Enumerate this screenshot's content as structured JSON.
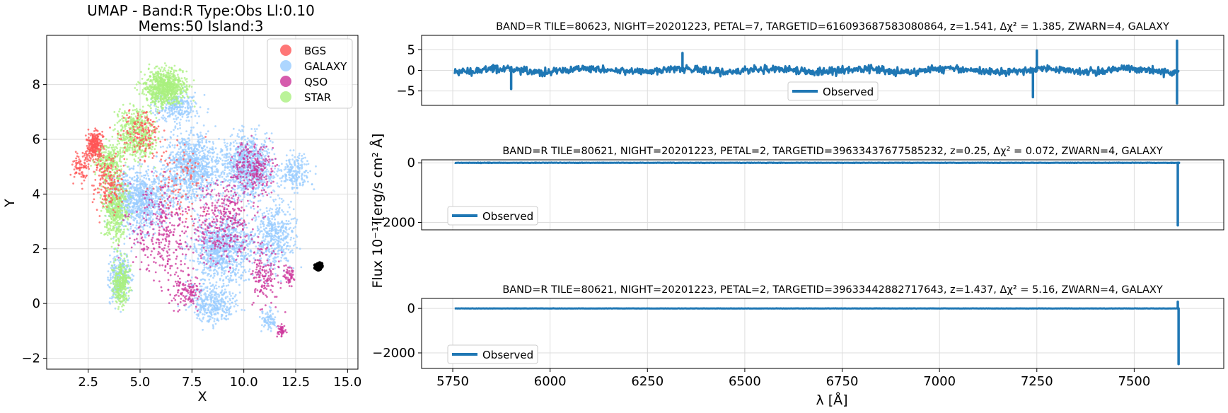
{
  "umap": {
    "title_line1": "UMAP  -  Band:R Type:Obs Ll:0.10",
    "title_line2": "Mems:50 Island:3",
    "xlabel": "X",
    "ylabel": "Y",
    "x_ticks": [
      "2.5",
      "5.0",
      "7.5",
      "10.0",
      "12.5",
      "15.0"
    ],
    "y_ticks": [
      "8",
      "6",
      "4",
      "2",
      "0",
      "−2"
    ],
    "legend": [
      {
        "label": "BGS",
        "color": "#ff5555"
      },
      {
        "label": "GALAXY",
        "color": "#99ccff"
      },
      {
        "label": "QSO",
        "color": "#cc3399"
      },
      {
        "label": "STAR",
        "color": "#aaf07f"
      }
    ]
  },
  "spectra": {
    "ylabel": "Flux 10⁻¹⁷[erg/s cm² Å]",
    "xlabel": "λ [Å]",
    "x_ticks": [
      "5750",
      "6000",
      "6250",
      "6500",
      "6750",
      "7000",
      "7250",
      "7500"
    ],
    "panels": [
      {
        "title": "BAND=R TILE=80623, NIGHT=20201223, PETAL=7, TARGETID=616093687583080864, z=1.541, Δχ² = 1.385, ZWARN=4, GALAXY",
        "y_ticks": [
          "5",
          "0",
          "−5"
        ],
        "legend": "Observed"
      },
      {
        "title": "BAND=R TILE=80621, NIGHT=20201223, PETAL=2, TARGETID=39633437677585232, z=0.25, Δχ² = 0.072, ZWARN=4, GALAXY",
        "y_ticks": [
          "0",
          "−2000"
        ],
        "legend": "Observed"
      },
      {
        "title": "BAND=R TILE=80621, NIGHT=20201223, PETAL=2, TARGETID=39633442882717643, z=1.437, Δχ² = 5.16, ZWARN=4, GALAXY",
        "y_ticks": [
          "0",
          "−2000"
        ],
        "legend": "Observed"
      }
    ]
  },
  "chart_data": [
    {
      "type": "scatter",
      "title": "UMAP  -  Band:R Type:Obs Ll:0.10 / Mems:50 Island:3",
      "xlabel": "X",
      "ylabel": "Y",
      "xlim": [
        0.5,
        15.5
      ],
      "ylim": [
        -2.4,
        9.8
      ],
      "grid": true,
      "legend_position": "top-right",
      "series": [
        {
          "name": "BGS",
          "color": "#ff5555",
          "region": {
            "x": [
              1.5,
              7.5
            ],
            "y": [
              3.0,
              7.5
            ]
          }
        },
        {
          "name": "GALAXY",
          "color": "#99ccff",
          "region": {
            "x": [
              2.5,
              14.5
            ],
            "y": [
              -1.4,
              8.6
            ]
          }
        },
        {
          "name": "QSO",
          "color": "#cc3399",
          "region": {
            "x": [
              3.0,
              13.0
            ],
            "y": [
              -1.4,
              7.5
            ]
          }
        },
        {
          "name": "STAR",
          "color": "#aaf07f",
          "region": {
            "x": [
              3.0,
              7.8
            ],
            "y": [
              -0.5,
              8.8
            ]
          }
        }
      ],
      "highlight": {
        "color": "#000000",
        "x": [
          13.3,
          13.9
        ],
        "y": [
          1.1,
          1.6
        ]
      }
    },
    {
      "type": "line",
      "series": [
        {
          "name": "Observed",
          "color": "#1f77b4"
        }
      ],
      "xlim": [
        5670,
        7730
      ],
      "ylim": [
        -8.5,
        8.5
      ],
      "noise_amplitude": 1.0,
      "spikes": [
        {
          "x": 5900,
          "y": -4.5
        },
        {
          "x": 6340,
          "y": 4.2
        },
        {
          "x": 7240,
          "y": -6.5
        },
        {
          "x": 7250,
          "y": 4.8
        },
        {
          "x": 7610,
          "y": 7.2
        },
        {
          "x": 7610,
          "y": -8.0
        }
      ]
    },
    {
      "type": "line",
      "series": [
        {
          "name": "Observed",
          "color": "#1f77b4"
        }
      ],
      "xlim": [
        5670,
        7730
      ],
      "ylim": [
        -2250,
        100
      ],
      "noise_amplitude": 8,
      "spikes": [
        {
          "x": 7612,
          "y": -2100
        },
        {
          "x": 7615,
          "y": 0
        }
      ]
    },
    {
      "type": "line",
      "series": [
        {
          "name": "Observed",
          "color": "#1f77b4"
        }
      ],
      "xlim": [
        5670,
        7730
      ],
      "ylim": [
        -2700,
        450
      ],
      "noise_amplitude": 6,
      "spikes": [
        {
          "x": 7612,
          "y": 300
        },
        {
          "x": 7614,
          "y": -2500
        }
      ]
    }
  ]
}
